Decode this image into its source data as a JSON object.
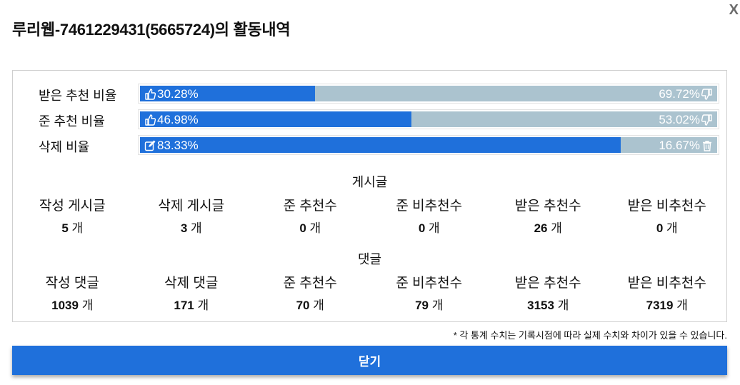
{
  "dialog": {
    "title": "루리웹-7461229431(5665724)의 활동내역",
    "close_x": "X"
  },
  "bars": [
    {
      "label": "받은 추천 비율",
      "left_text": "30.28%",
      "right_text": "69.72%",
      "fill_percent": 30.28,
      "left_icon": "thumbs-up-icon",
      "right_icon": "thumbs-down-icon"
    },
    {
      "label": "준 추천 비율",
      "left_text": "46.98%",
      "right_text": "53.02%",
      "fill_percent": 46.98,
      "left_icon": "thumbs-up-icon",
      "right_icon": "thumbs-down-icon"
    },
    {
      "label": "삭제 비율",
      "left_text": "83.33%",
      "right_text": "16.67%",
      "fill_percent": 83.33,
      "left_icon": "edit-icon",
      "right_icon": "trash-icon"
    }
  ],
  "posts": {
    "title": "게시글",
    "unit": "개",
    "stats": [
      {
        "label": "작성 게시글",
        "value": "5"
      },
      {
        "label": "삭제 게시글",
        "value": "3"
      },
      {
        "label": "준 추천수",
        "value": "0"
      },
      {
        "label": "준 비추천수",
        "value": "0"
      },
      {
        "label": "받은 추천수",
        "value": "26"
      },
      {
        "label": "받은 비추천수",
        "value": "0"
      }
    ]
  },
  "comments": {
    "title": "댓글",
    "unit": "개",
    "stats": [
      {
        "label": "작성 댓글",
        "value": "1039"
      },
      {
        "label": "삭제 댓글",
        "value": "171"
      },
      {
        "label": "준 추천수",
        "value": "70"
      },
      {
        "label": "준 비추천수",
        "value": "79"
      },
      {
        "label": "받은 추천수",
        "value": "3153"
      },
      {
        "label": "받은 비추천수",
        "value": "7319"
      }
    ]
  },
  "note": "* 각 통계 수치는 기록시점에 따라 실제 수치와 차이가 있을 수 있습니다.",
  "footer": {
    "close_label": "닫기"
  },
  "colors": {
    "accent": "#1f70db",
    "bar_bg": "#abc3cf"
  }
}
